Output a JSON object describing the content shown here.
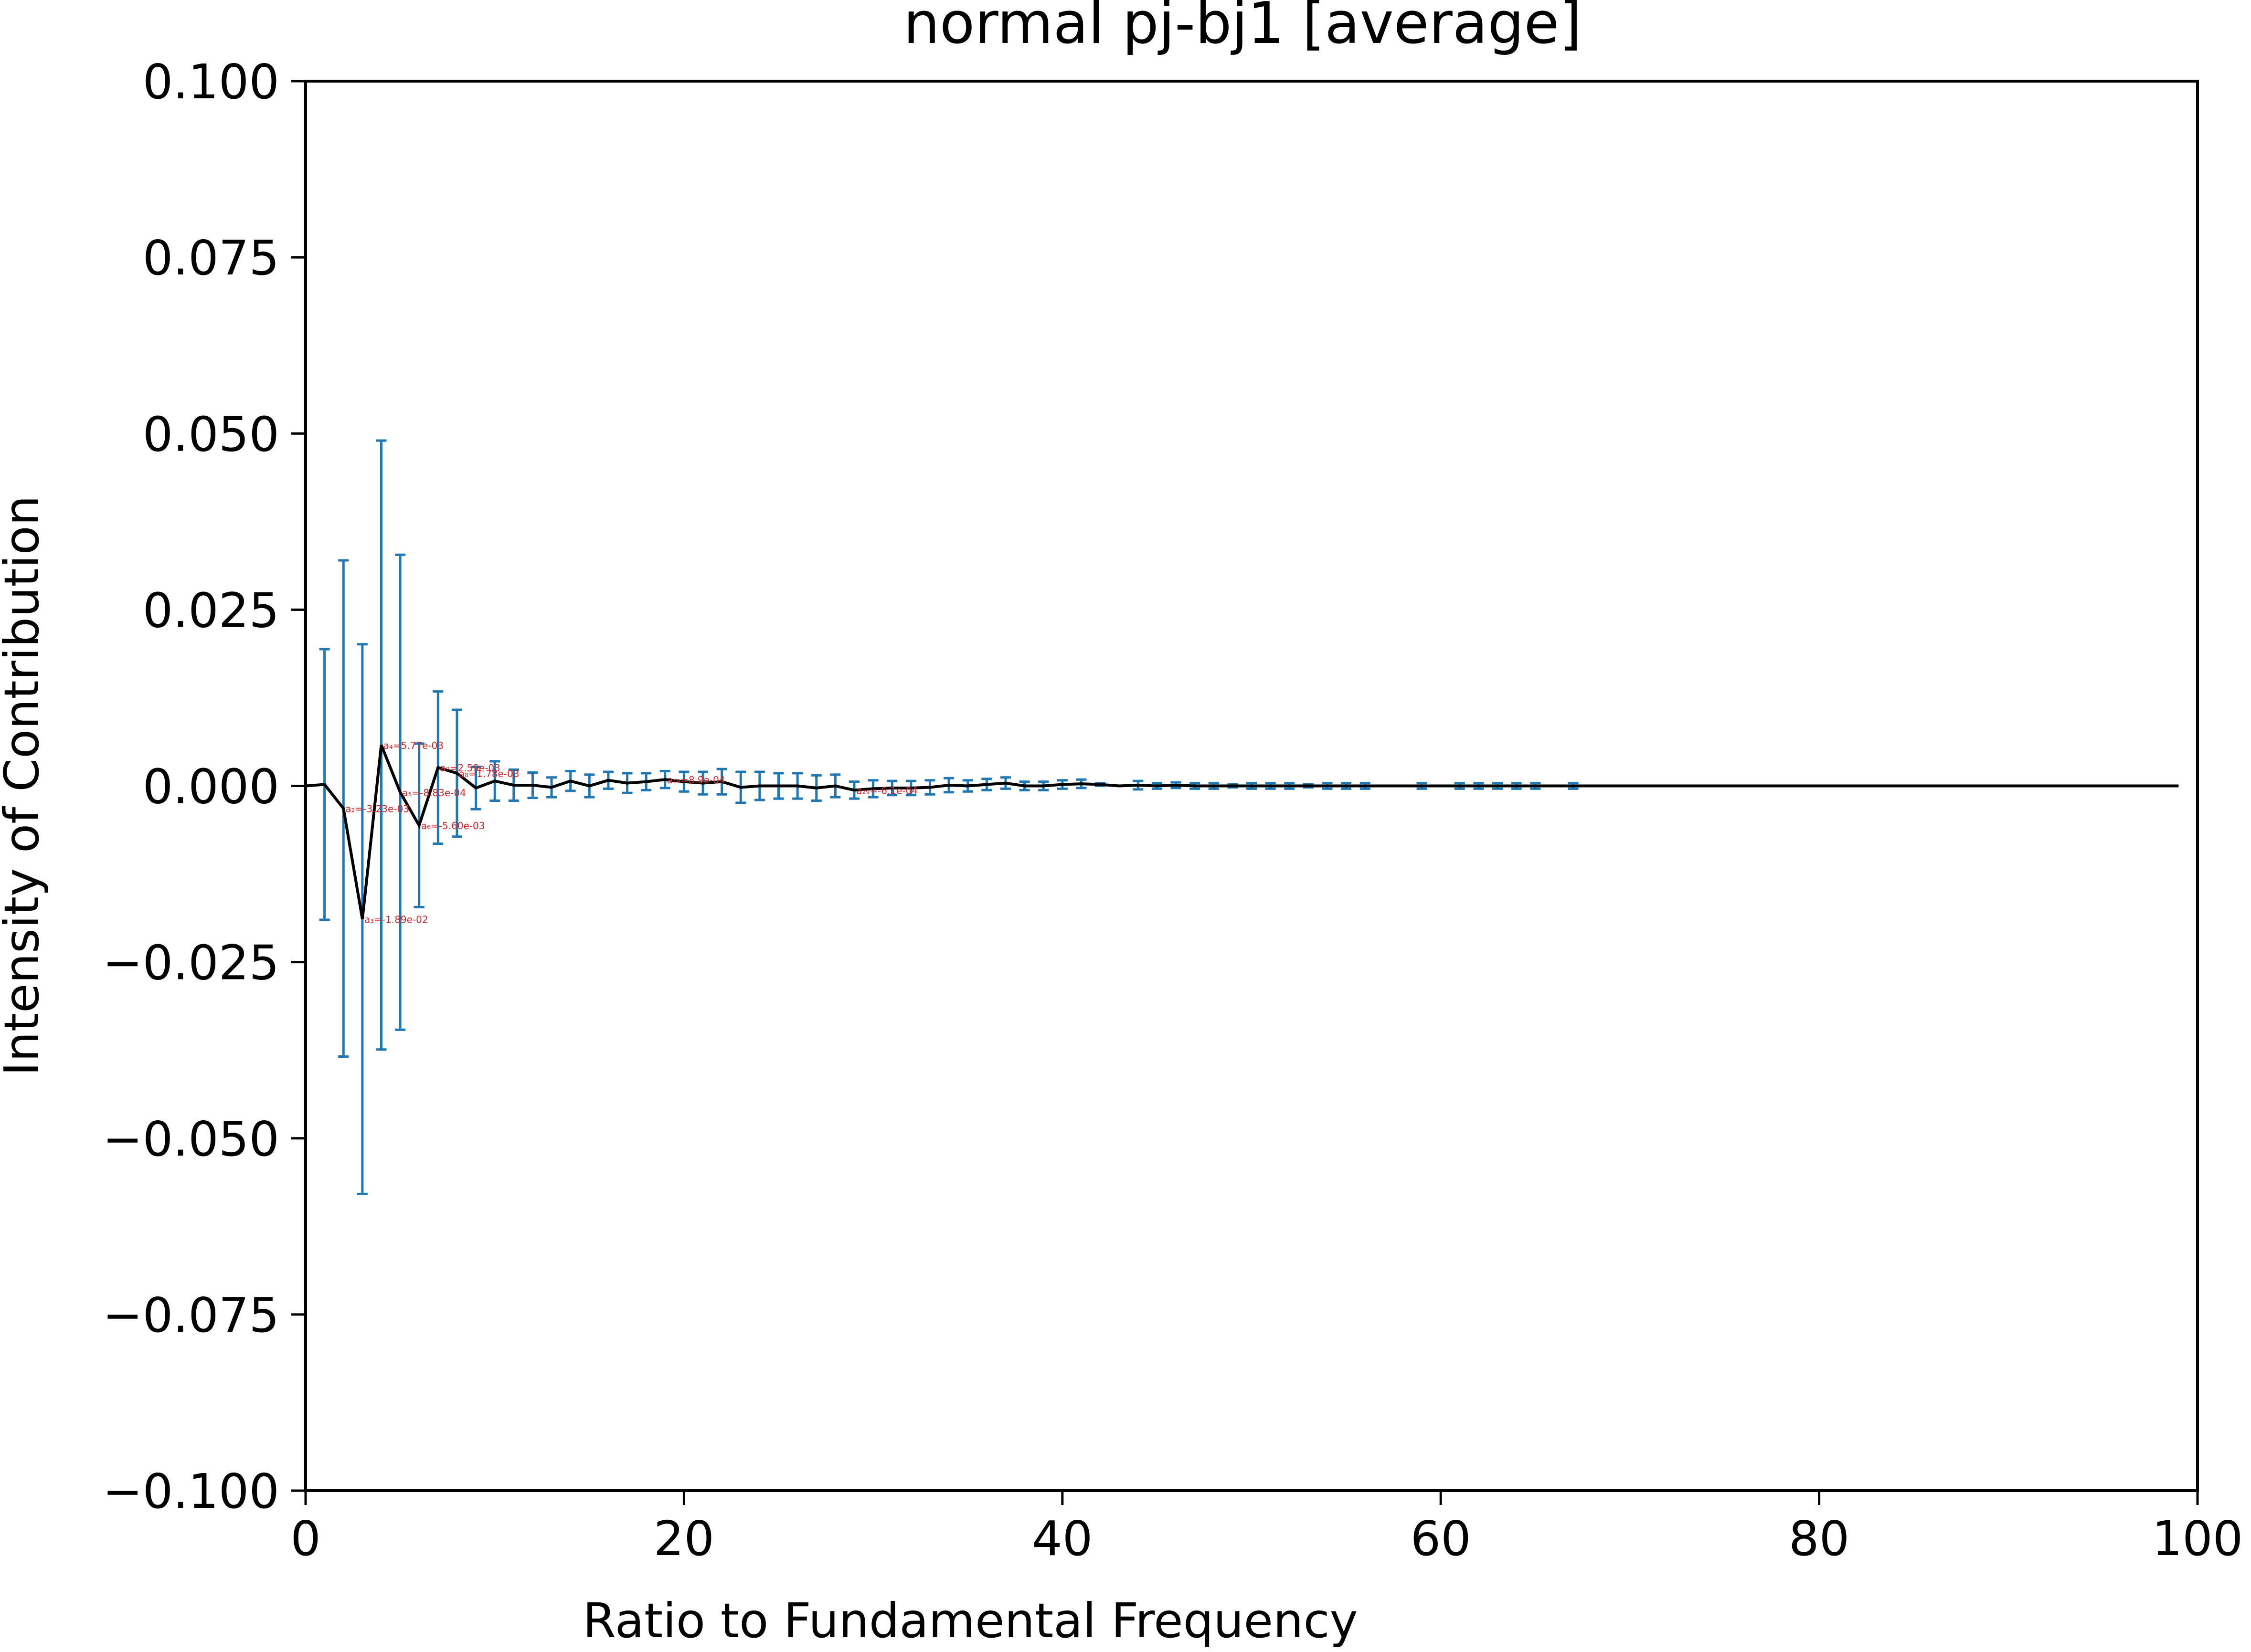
{
  "chart_data": {
    "type": "line",
    "title": "normal pj-bj1 [average]",
    "xlabel": "Ratio to Fundamental Frequency",
    "ylabel": "Intensity of Contribution",
    "xlim": [
      0,
      100
    ],
    "ylim": [
      -0.1,
      0.1
    ],
    "xticks": [
      0,
      20,
      40,
      60,
      80,
      100
    ],
    "xtick_labels": [
      "0",
      "20",
      "40",
      "60",
      "80",
      "100"
    ],
    "yticks": [
      0.1,
      0.075,
      0.05,
      0.025,
      0.0,
      -0.025,
      -0.05,
      -0.075,
      -0.1
    ],
    "ytick_labels": [
      "0.100",
      "0.075",
      "0.050",
      "0.025",
      "0.000",
      "−0.025",
      "−0.050",
      "−0.075",
      "−0.100"
    ],
    "grid": false,
    "line_color": "#000000",
    "errorbar_color": "#1f77b4",
    "annotation_color": "#d62728",
    "series": [
      {
        "x": [
          0,
          1,
          2,
          3,
          4,
          5,
          6,
          7,
          8,
          9,
          10,
          11,
          12,
          13,
          14,
          15,
          16,
          17,
          18,
          19,
          20,
          21,
          22,
          23,
          24,
          25,
          26,
          27,
          28,
          29,
          30,
          31,
          32,
          33,
          34,
          35,
          36,
          37,
          38,
          39,
          40,
          41,
          42,
          43,
          44,
          45,
          46,
          47,
          48,
          49,
          50,
          51,
          52,
          53,
          54,
          55,
          56,
          57,
          58,
          59,
          60,
          61,
          62,
          63,
          64,
          65,
          66,
          67,
          68,
          69,
          70,
          71,
          72,
          73,
          74,
          75,
          76,
          77,
          78,
          79,
          80,
          81,
          82,
          83,
          84,
          85,
          86,
          87,
          88,
          89,
          90,
          91,
          92,
          93,
          94,
          95,
          96,
          97,
          98,
          99
        ],
        "y": [
          0,
          0.0002,
          -0.0032,
          -0.0189,
          0.0058,
          -0.0009,
          -0.0056,
          0.0026,
          0.0018,
          -0.0003,
          0.0007,
          0.0001,
          0.0001,
          -0.0002,
          0.0007,
          0.0,
          0.0008,
          0.0004,
          0.0006,
          0.0009,
          0.0006,
          0.0004,
          0.0006,
          -0.0002,
          0.0,
          0.0,
          0.0,
          -0.0003,
          0.0,
          -0.0006,
          -0.0004,
          -0.0003,
          -0.0003,
          -0.0002,
          0.0001,
          0.0,
          0.0002,
          0.0004,
          0.0,
          0.0,
          0.0002,
          0.0003,
          0.0002,
          0.0,
          0.0001,
          0.0,
          0.0001,
          0.0,
          0.0,
          0.0,
          0.0,
          0.0,
          0.0,
          0.0,
          0.0,
          0.0,
          0.0,
          0.0,
          0.0,
          0,
          0,
          0,
          0,
          0,
          0,
          0,
          0,
          0,
          0,
          0,
          0,
          0,
          0,
          0,
          0,
          0,
          0,
          0,
          0,
          0,
          0,
          0,
          0,
          0,
          0,
          0,
          0,
          0,
          0,
          0,
          0,
          0,
          0,
          0,
          0,
          0,
          0,
          0,
          0,
          0
        ],
        "yerr": [
          0,
          0.0192,
          0.0352,
          0.039,
          0.0432,
          0.0337,
          0.0116,
          0.0108,
          0.009,
          0.003,
          0.0028,
          0.0022,
          0.0018,
          0.0014,
          0.0014,
          0.0016,
          0.0012,
          0.0014,
          0.0012,
          0.0012,
          0.0014,
          0.0016,
          0.0018,
          0.0022,
          0.002,
          0.0018,
          0.0018,
          0.0018,
          0.0016,
          0.0012,
          0.0012,
          0.001,
          0.001,
          0.001,
          0.001,
          0.0008,
          0.0008,
          0.0008,
          0.0006,
          0.0006,
          0.0006,
          0.0006,
          0.0002,
          0,
          0.0006,
          0.0004,
          0.0004,
          0.0004,
          0.0004,
          0.0002,
          0.0004,
          0.0004,
          0.0004,
          0.0002,
          0.0004,
          0.0004,
          0.0004,
          0,
          0,
          0.0004,
          0,
          0.0004,
          0.0004,
          0.0004,
          0.0004,
          0.0004,
          0,
          0.0004,
          0,
          0,
          0,
          0,
          0,
          0,
          0,
          0,
          0,
          0,
          0,
          0,
          0,
          0,
          0,
          0,
          0,
          0,
          0,
          0,
          0,
          0,
          0,
          0,
          0,
          0,
          0,
          0,
          0,
          0,
          0,
          0
        ]
      }
    ],
    "annotations": [
      {
        "x": 2,
        "y": -0.0032,
        "text": "a₂=-3.23e-03"
      },
      {
        "x": 3,
        "y": -0.0189,
        "text": "a₃=-1.89e-02"
      },
      {
        "x": 4,
        "y": 0.0058,
        "text": "a₄=5.77e-03"
      },
      {
        "x": 5,
        "y": -0.0009,
        "text": "a₅=-8.83e-04"
      },
      {
        "x": 6,
        "y": -0.0056,
        "text": "a₆=-5.60e-03"
      },
      {
        "x": 7,
        "y": 0.0026,
        "text": "a₇=2.59e-03"
      },
      {
        "x": 8,
        "y": 0.0018,
        "text": "a₈=1.78e-03"
      },
      {
        "x": 19,
        "y": 0.0009,
        "text": "a₁₉=8.9e-04"
      },
      {
        "x": 29,
        "y": -0.0006,
        "text": "a₂₉=-6.1e-04"
      }
    ]
  }
}
